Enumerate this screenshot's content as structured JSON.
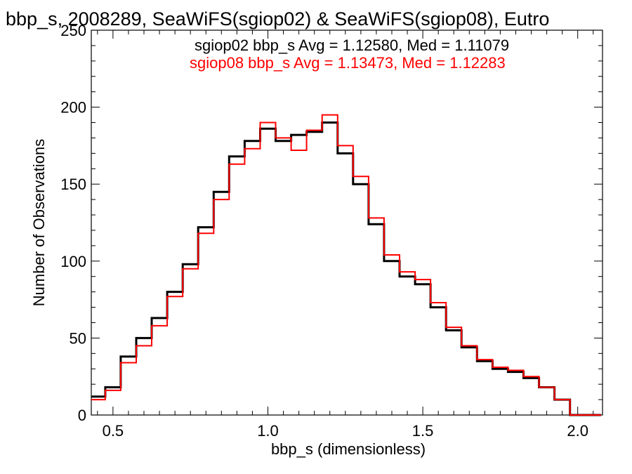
{
  "chart_data": {
    "type": "line",
    "title": "bbp_s, 2008289, SeaWiFS(sgiop02) & SeaWiFS(sgiop08), Eutro",
    "xlabel": "bbp_s (dimensionless)",
    "ylabel": "Number of Observations",
    "xlim": [
      0.43,
      2.08
    ],
    "ylim": [
      0,
      250
    ],
    "xticks": [
      "0.5",
      "1.0",
      "1.5",
      "2.0"
    ],
    "yticks": [
      "0",
      "50",
      "100",
      "150",
      "200",
      "250"
    ],
    "annotations": [
      {
        "text": "sgiop02 bbp_s Avg = 1.12580, Med = 1.11079",
        "color": "#000000"
      },
      {
        "text": "sgiop08 bbp_s Avg = 1.13473, Med = 1.12283",
        "color": "#ff0000"
      }
    ],
    "bin_width": 0.05,
    "series": [
      {
        "color": "#000000",
        "x": [
          0.45,
          0.5,
          0.55,
          0.6,
          0.65,
          0.7,
          0.75,
          0.8,
          0.85,
          0.9,
          0.95,
          1.0,
          1.05,
          1.1,
          1.15,
          1.2,
          1.25,
          1.3,
          1.35,
          1.4,
          1.45,
          1.5,
          1.55,
          1.6,
          1.65,
          1.7,
          1.75,
          1.8,
          1.85,
          1.9,
          1.95,
          2.0,
          2.05
        ],
        "y": [
          12,
          18,
          38,
          50,
          63,
          80,
          98,
          122,
          145,
          168,
          178,
          186,
          178,
          182,
          184,
          190,
          170,
          150,
          124,
          100,
          90,
          85,
          70,
          55,
          44,
          35,
          30,
          28,
          24,
          18,
          10,
          0,
          0
        ]
      },
      {
        "color": "#ff0000",
        "x": [
          0.45,
          0.5,
          0.55,
          0.6,
          0.65,
          0.7,
          0.75,
          0.8,
          0.85,
          0.9,
          0.95,
          1.0,
          1.05,
          1.1,
          1.15,
          1.2,
          1.25,
          1.3,
          1.35,
          1.4,
          1.45,
          1.5,
          1.55,
          1.6,
          1.65,
          1.7,
          1.75,
          1.8,
          1.85,
          1.9,
          1.95,
          2.0,
          2.05
        ],
        "y": [
          10,
          16,
          34,
          45,
          58,
          77,
          95,
          118,
          140,
          163,
          173,
          190,
          180,
          172,
          185,
          195,
          175,
          155,
          128,
          104,
          93,
          88,
          73,
          57,
          45,
          36,
          31,
          29,
          25,
          18,
          10,
          0,
          0
        ]
      }
    ]
  }
}
